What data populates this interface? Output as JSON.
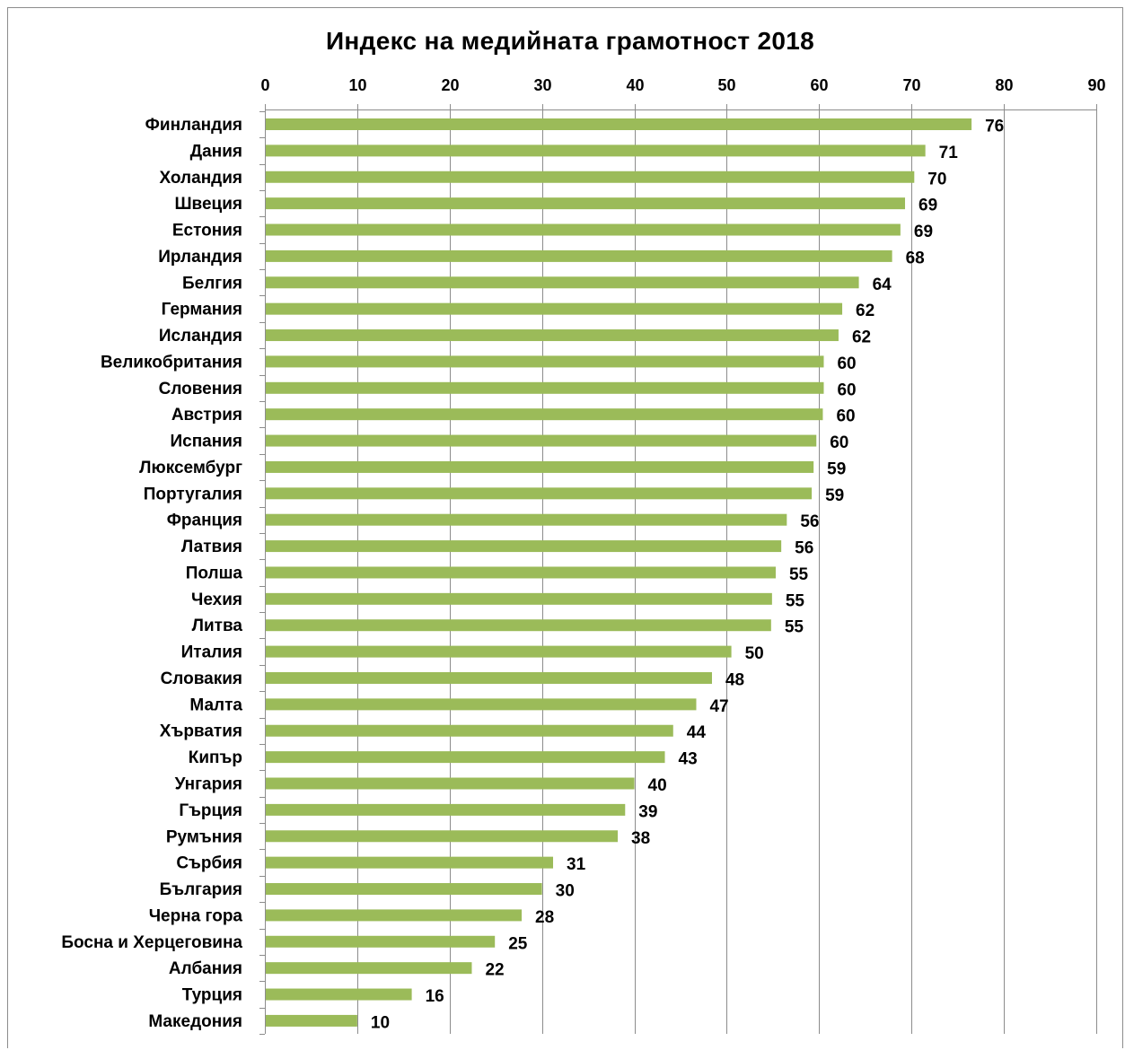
{
  "chart_data": {
    "type": "bar",
    "orientation": "horizontal",
    "title": "Индекс на медийната грамотност 2018",
    "xlim": [
      0,
      90
    ],
    "x_ticks": [
      0,
      10,
      20,
      30,
      40,
      50,
      60,
      70,
      80,
      90
    ],
    "x_axis_position": "top",
    "grid": true,
    "legend": "none",
    "bar_color": "#9BBB59",
    "categories": [
      "Финландия",
      "Дания",
      "Холандия",
      "Швеция",
      "Естония",
      "Ирландия",
      "Белгия",
      "Германия",
      "Исландия",
      "Великобритания",
      "Словения",
      "Австрия",
      "Испания",
      "Люксембург",
      "Португалия",
      "Франция",
      "Латвия",
      "Полша",
      "Чехия",
      "Литва",
      "Италия",
      "Словакия",
      "Малта",
      "Хърватия",
      "Кипър",
      "Унгария",
      "Гърция",
      "Румъния",
      "Сърбия",
      "България",
      "Черна гора",
      "Босна и Херцеговина",
      "Албания",
      "Турция",
      "Македония"
    ],
    "values": [
      76.5,
      71.5,
      70.3,
      69.3,
      68.8,
      67.9,
      64.3,
      62.5,
      62.1,
      60.5,
      60.5,
      60.4,
      59.7,
      59.4,
      59.2,
      56.5,
      55.9,
      55.3,
      54.9,
      54.8,
      50.5,
      48.4,
      46.7,
      44.2,
      43.3,
      40.0,
      39.0,
      38.2,
      31.2,
      30.0,
      27.8,
      24.9,
      22.4,
      15.9,
      10.0
    ],
    "data_labels": [
      "76",
      "71",
      "70",
      "69",
      "69",
      "68",
      "64",
      "62",
      "62",
      "60",
      "60",
      "60",
      "60",
      "59",
      "59",
      "56",
      "56",
      "55",
      "55",
      "55",
      "50",
      "48",
      "47",
      "44",
      "43",
      "40",
      "39",
      "38",
      "31",
      "30",
      "28",
      "25",
      "22",
      "16",
      "10"
    ]
  }
}
